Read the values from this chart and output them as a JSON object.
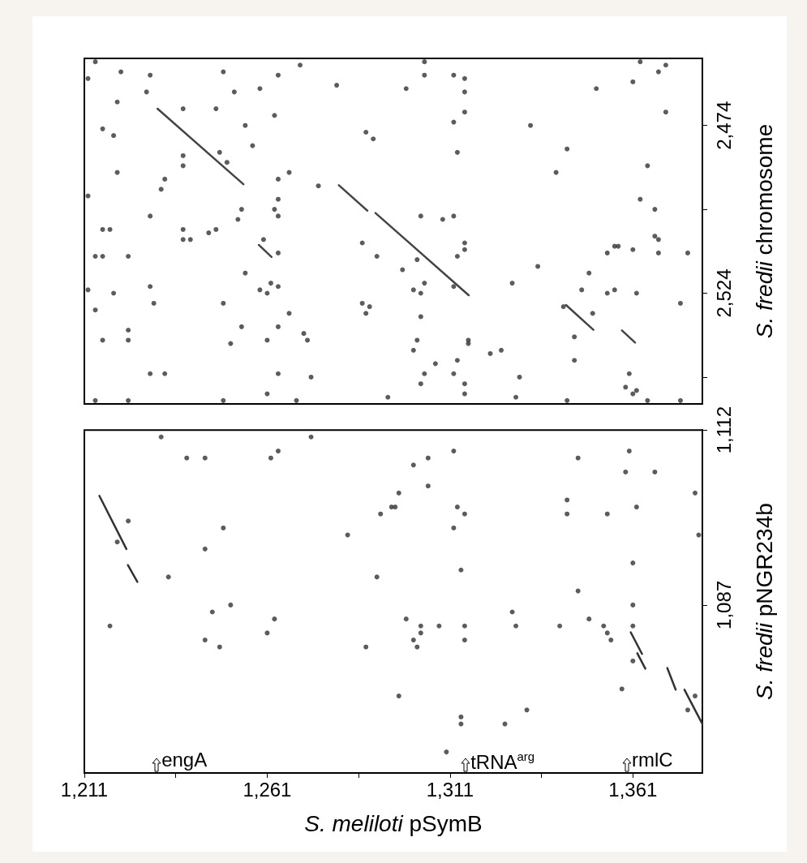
{
  "chart_data": [
    {
      "type": "scatter",
      "ylabel": "S. fredii chromosome",
      "xlim": [
        1211,
        1380
      ],
      "ylim": [
        2557,
        2454
      ],
      "tick_labels": "y",
      "yticks": [
        {
          "value": 2474,
          "label": "2,474"
        },
        {
          "value": 2499,
          "label": null
        },
        {
          "value": 2524,
          "label": "2,524"
        },
        {
          "value": 2549,
          "label": null
        }
      ],
      "series": [
        {
          "type": "scatter",
          "marker": "circle",
          "color": "#333333",
          "x": [
            1214,
            1221,
            1229,
            1212,
            1249,
            1270,
            1264,
            1259,
            1228,
            1252,
            1220,
            1280,
            1238,
            1247,
            1263,
            1255,
            1216,
            1219,
            1288,
            1290,
            1257,
            1238,
            1238,
            1248,
            1250,
            1220,
            1267,
            1233,
            1232,
            1264,
            1264,
            1275,
            1212,
            1254,
            1253,
            1263,
            1264,
            1229,
            1216,
            1218,
            1238,
            1247,
            1245,
            1238,
            1240,
            1260,
            1287,
            1291,
            1214,
            1216,
            1223,
            1264,
            1255,
            1229,
            1264,
            1262,
            1259,
            1261,
            1212,
            1219,
            1214,
            1230,
            1249,
            1287,
            1289,
            1288,
            1267,
            1223,
            1223,
            1216,
            1254,
            1264,
            1271,
            1272,
            1261,
            1251,
            1229,
            1233,
            1264,
            1273,
            1261,
            1294,
            1214,
            1223,
            1249,
            1269,
            1304,
            1304,
            1312,
            1315,
            1315,
            1299,
            1315,
            1312,
            1313,
            1333,
            1343,
            1340,
            1351,
            1361,
            1363,
            1370,
            1368,
            1370,
            1365,
            1363,
            1367,
            1303,
            1312,
            1309,
            1315,
            1313,
            1315,
            1302,
            1298,
            1335,
            1312,
            1328,
            1304,
            1301,
            1303,
            1303,
            1302,
            1301,
            1316,
            1316,
            1313,
            1307,
            1322,
            1325,
            1304,
            1312,
            1303,
            1315,
            1315,
            1330,
            1329,
            1343,
            1354,
            1356,
            1357,
            1361,
            1367,
            1368,
            1368,
            1376,
            1349,
            1347,
            1354,
            1356,
            1362,
            1374,
            1342,
            1350,
            1345,
            1345,
            1360,
            1359,
            1362,
            1361,
            1365,
            1374
          ],
          "values": [
            2455,
            2458,
            2459,
            2460,
            2458,
            2456,
            2459,
            2463,
            2464,
            2464,
            2467,
            2462,
            2469,
            2469,
            2471,
            2474,
            2475,
            2477,
            2476,
            2478,
            2480,
            2483,
            2486,
            2482,
            2485,
            2488,
            2488,
            2490,
            2493,
            2490,
            2496,
            2492,
            2495,
            2499,
            2502,
            2499,
            2501,
            2501,
            2505,
            2505,
            2505,
            2505,
            2506,
            2508,
            2508,
            2508,
            2509,
            2513,
            2513,
            2513,
            2513,
            2512,
            2518,
            2522,
            2522,
            2521,
            2523,
            2524,
            2523,
            2524,
            2529,
            2527,
            2527,
            2527,
            2528,
            2530,
            2530,
            2535,
            2538,
            2538,
            2534,
            2534,
            2536,
            2538,
            2538,
            2539,
            2548,
            2548,
            2548,
            2549,
            2554,
            2555,
            2556,
            2556,
            2556,
            2556,
            2455,
            2459,
            2459,
            2460,
            2464,
            2463,
            2470,
            2473,
            2482,
            2474,
            2481,
            2488,
            2463,
            2461,
            2455,
            2456,
            2458,
            2470,
            2486,
            2496,
            2499,
            2501,
            2501,
            2502,
            2509,
            2513,
            2511,
            2514,
            2517,
            2516,
            2522,
            2521,
            2521,
            2523,
            2524,
            2531,
            2538,
            2541,
            2538,
            2539,
            2544,
            2545,
            2542,
            2541,
            2548,
            2548,
            2551,
            2551,
            2554,
            2549,
            2555,
            2556,
            2512,
            2510,
            2510,
            2511,
            2507,
            2508,
            2512,
            2512,
            2518,
            2523,
            2524,
            2523,
            2524,
            2527,
            2528,
            2530,
            2537,
            2544,
            2548,
            2552,
            2553,
            2554,
            2556,
            2556
          ]
        },
        {
          "type": "line",
          "marker": "none",
          "color": "#444444",
          "x": [
            1231,
            1254.5
          ],
          "values": [
            2469,
            2491.5
          ]
        },
        {
          "type": "line",
          "marker": "none",
          "color": "#444444",
          "x": [
            1280.6,
            1288.4
          ],
          "values": [
            2491.8,
            2499.4
          ]
        },
        {
          "type": "line",
          "marker": "none",
          "color": "#444444",
          "x": [
            1290.6,
            1316.1
          ],
          "values": [
            2500.1,
            2524.6
          ]
        },
        {
          "type": "line",
          "marker": "none",
          "color": "#444444",
          "x": [
            1258.7,
            1262.2
          ],
          "values": [
            2509.6,
            2513.2
          ]
        },
        {
          "type": "line",
          "marker": "none",
          "color": "#444444",
          "x": [
            1342.7,
            1350.2
          ],
          "values": [
            2527.5,
            2534.9
          ]
        },
        {
          "type": "line",
          "marker": "none",
          "color": "#444444",
          "x": [
            1358,
            1361.6
          ],
          "values": [
            2535.1,
            2538.7
          ]
        }
      ]
    },
    {
      "type": "scatter",
      "xlabel": "S. meliloti pSymB",
      "ylabel": "S. fredii pNGR234b",
      "xlim": [
        1211,
        1380
      ],
      "ylim": [
        1063,
        1112
      ],
      "xticks": [
        {
          "value": 1211,
          "label": "1,211"
        },
        {
          "value": 1236,
          "label": null
        },
        {
          "value": 1261,
          "label": "1,261"
        },
        {
          "value": 1286,
          "label": null
        },
        {
          "value": 1311,
          "label": "1,311"
        },
        {
          "value": 1336,
          "label": null
        },
        {
          "value": 1361,
          "label": "1,361"
        }
      ],
      "yticks": [
        {
          "value": 1112,
          "label": "1,112"
        },
        {
          "value": 1087,
          "label": "1,087"
        }
      ],
      "annotations": [
        "engA",
        "tRNA$^{arg}$",
        "rmlC"
      ],
      "series": [
        {
          "type": "scatter",
          "marker": "circle",
          "color": "#333333",
          "x": [
            1232,
            1239,
            1244,
            1273,
            1264,
            1262,
            1223,
            1220,
            1249,
            1244,
            1234,
            1283,
            1291,
            1292,
            1295,
            1246,
            1251,
            1263,
            1261,
            1244,
            1248,
            1288,
            1218,
            1312,
            1301,
            1305,
            1346,
            1360,
            1359,
            1367,
            1378,
            1297,
            1296,
            1305,
            1313,
            1315,
            1312,
            1343,
            1343,
            1354,
            1362,
            1379,
            1361,
            1314,
            1346,
            1361,
            1328,
            1329,
            1341,
            1349,
            1353,
            1354,
            1355,
            1361,
            1361,
            1299,
            1303,
            1303,
            1301,
            1302,
            1308,
            1315,
            1315,
            1297,
            1332,
            1326,
            1314,
            1314,
            1310,
            1358,
            1376,
            1378
          ],
          "values": [
            1111,
            1108,
            1108,
            1111,
            1109,
            1108,
            1099,
            1096,
            1098,
            1095,
            1091,
            1097,
            1091,
            1100,
            1101,
            1086,
            1087,
            1085,
            1083,
            1082,
            1081,
            1081,
            1084,
            1109,
            1107,
            1108,
            1108,
            1109,
            1106,
            1106,
            1103,
            1103,
            1101,
            1104,
            1101,
            1100,
            1098,
            1102,
            1100,
            1100,
            1101,
            1097,
            1093,
            1092,
            1089,
            1087,
            1086,
            1084,
            1084,
            1085,
            1084,
            1083,
            1082,
            1084,
            1079,
            1085,
            1084,
            1083,
            1082,
            1081,
            1084,
            1084,
            1082,
            1074,
            1072,
            1070,
            1071,
            1070,
            1066,
            1075,
            1072,
            1074
          ]
        },
        {
          "type": "line",
          "marker": "none",
          "color": "#333333",
          "x": [
            1215.1,
            1222.5
          ],
          "values": [
            1102.6,
            1095
          ]
        },
        {
          "type": "line",
          "marker": "none",
          "color": "#333333",
          "x": [
            1222.9,
            1225.5
          ],
          "values": [
            1092.7,
            1090.3
          ]
        },
        {
          "type": "line",
          "marker": "none",
          "color": "#333333",
          "x": [
            1360.4,
            1363.5
          ],
          "values": [
            1083.1,
            1080
          ]
        },
        {
          "type": "line",
          "marker": "none",
          "color": "#333333",
          "x": [
            1362.2,
            1364.4
          ],
          "values": [
            1080.1,
            1077.9
          ]
        },
        {
          "type": "line",
          "marker": "none",
          "color": "#333333",
          "x": [
            1370.4,
            1372.7
          ],
          "values": [
            1078,
            1074.9
          ]
        },
        {
          "type": "line",
          "marker": "none",
          "color": "#333333",
          "x": [
            1375.1,
            1380
          ],
          "values": [
            1074.9,
            1070
          ]
        }
      ]
    }
  ]
}
